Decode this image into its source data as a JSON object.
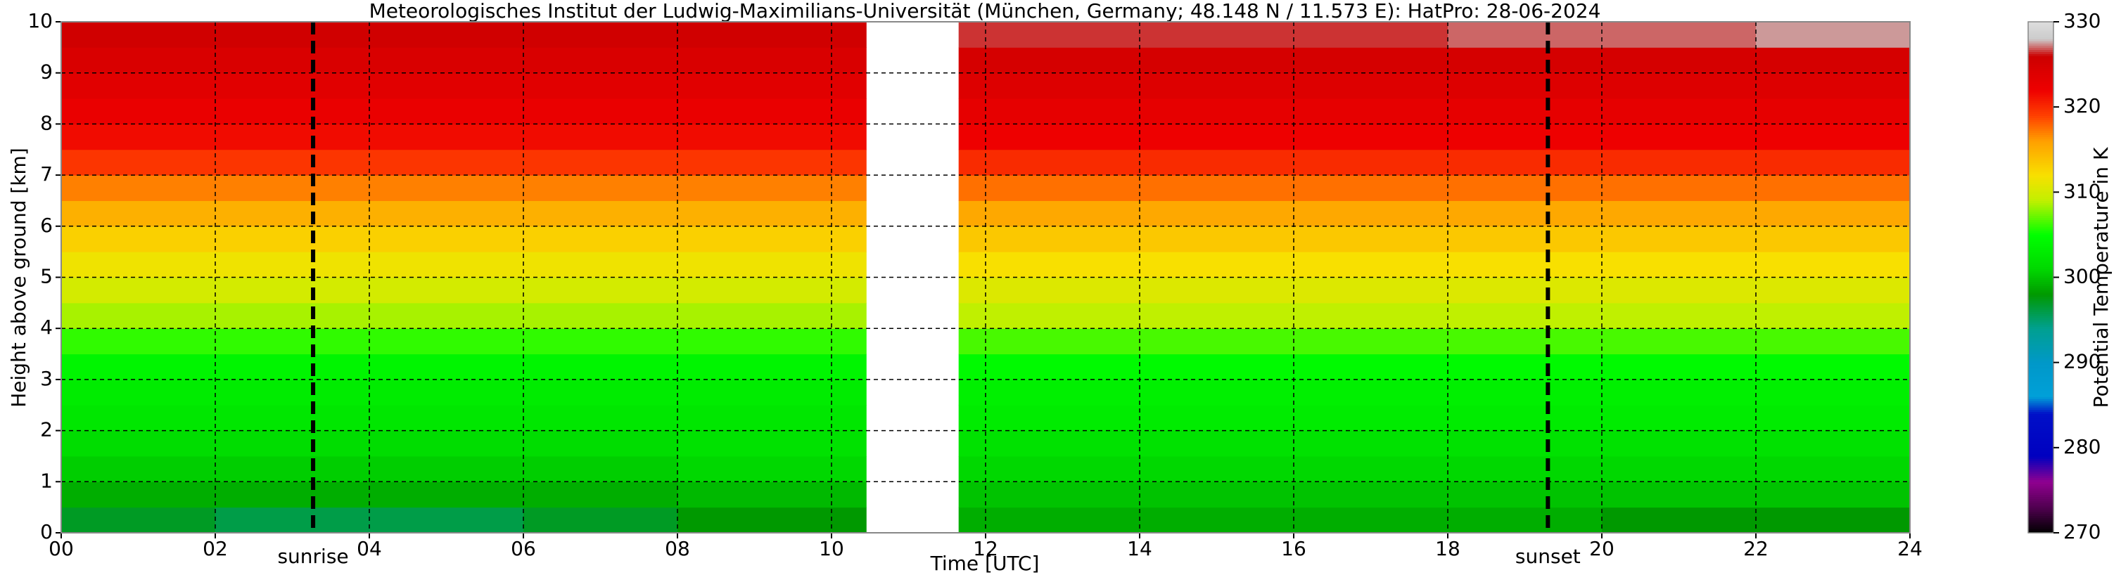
{
  "chart_data": {
    "type": "heatmap",
    "title": "Meteorologisches Institut der Ludwig-Maximilians-Universität (München, Germany; 48.148 N / 11.573 E):    HatPro: 28-06-2024",
    "x_label": "Time [UTC]",
    "y_label": "Height above ground [km]",
    "colorbar_label": "Potential Temperature in K",
    "x_bins": [
      0,
      2,
      4,
      6,
      8,
      10.45,
      11.65,
      14,
      16,
      18,
      20,
      22,
      24
    ],
    "y_bins": [
      0,
      0.5,
      1,
      1.5,
      2,
      2.5,
      3,
      3.5,
      4,
      4.5,
      5,
      5.5,
      6,
      6.5,
      7,
      7.5,
      8,
      8.5,
      9,
      9.5,
      10
    ],
    "values": [
      [
        297,
        296,
        296,
        297,
        298,
        null,
        299,
        299,
        299,
        299,
        298,
        298
      ],
      [
        299,
        299,
        299,
        299,
        299.5,
        null,
        300,
        300,
        300,
        300,
        300,
        300
      ],
      [
        300.5,
        300.5,
        300.5,
        300.5,
        301,
        null,
        301,
        301,
        301,
        301,
        301,
        301
      ],
      [
        301.5,
        301.5,
        301.5,
        301.5,
        302,
        null,
        302,
        302,
        302,
        302,
        302,
        302
      ],
      [
        302.5,
        302.5,
        302.5,
        302.5,
        302.5,
        null,
        303,
        303,
        303,
        303,
        303,
        303
      ],
      [
        303,
        303,
        303,
        303,
        303,
        null,
        303.5,
        303.5,
        303.5,
        303.5,
        303.5,
        303.5
      ],
      [
        304,
        304,
        304,
        304,
        304,
        null,
        304.5,
        304.5,
        304.5,
        304.5,
        304.5,
        304.5
      ],
      [
        306,
        306,
        306,
        306,
        306,
        null,
        306.5,
        306.5,
        306.5,
        306.5,
        306.5,
        306.5
      ],
      [
        308.5,
        308.5,
        308.5,
        308.5,
        308.5,
        null,
        309,
        309,
        309,
        309,
        309,
        309
      ],
      [
        310,
        310,
        310,
        310,
        310,
        null,
        310.5,
        310.5,
        310.5,
        310.5,
        310.5,
        310.5
      ],
      [
        311.5,
        311.5,
        311.5,
        311.5,
        311.5,
        null,
        312,
        312,
        312,
        312,
        312,
        312
      ],
      [
        313,
        313,
        313,
        313,
        313,
        null,
        313.5,
        313.5,
        313.5,
        313.5,
        313.5,
        313.5
      ],
      [
        315,
        315,
        315,
        315,
        315,
        null,
        315.5,
        315.5,
        315.5,
        315.5,
        315.5,
        315.5
      ],
      [
        317,
        317,
        317,
        317,
        317,
        null,
        317.5,
        317.5,
        317.5,
        317.5,
        317.5,
        317.5
      ],
      [
        319.5,
        319.5,
        319.5,
        319.5,
        319.5,
        null,
        320,
        320,
        320,
        320,
        320,
        320
      ],
      [
        321.5,
        321.5,
        321.5,
        321.5,
        321.5,
        null,
        322,
        322,
        322,
        322,
        322,
        322
      ],
      [
        322.5,
        322.5,
        322.5,
        322.5,
        322.5,
        null,
        323,
        323,
        323,
        323,
        323,
        323
      ],
      [
        323.5,
        323.5,
        323.5,
        323.5,
        323.5,
        null,
        324,
        324,
        324,
        324,
        324,
        324
      ],
      [
        324.5,
        324.5,
        324.5,
        324.5,
        324.5,
        null,
        325,
        325,
        325,
        325,
        325,
        325
      ],
      [
        325.5,
        325.5,
        325.5,
        325.5,
        325.5,
        null,
        326.5,
        326.5,
        326.5,
        327,
        327,
        327.5
      ]
    ],
    "colormap": [
      {
        "value": 270,
        "color": "#000000"
      },
      {
        "value": 273,
        "color": "#500050"
      },
      {
        "value": 276,
        "color": "#900090"
      },
      {
        "value": 279,
        "color": "#0000c0"
      },
      {
        "value": 284,
        "color": "#0010c8"
      },
      {
        "value": 286,
        "color": "#00a0d8"
      },
      {
        "value": 290,
        "color": "#0098c8"
      },
      {
        "value": 294,
        "color": "#00a090"
      },
      {
        "value": 298,
        "color": "#009900"
      },
      {
        "value": 301,
        "color": "#00d800"
      },
      {
        "value": 305,
        "color": "#00ff00"
      },
      {
        "value": 309,
        "color": "#c0f000"
      },
      {
        "value": 312,
        "color": "#f8e000"
      },
      {
        "value": 316,
        "color": "#ffa000"
      },
      {
        "value": 319,
        "color": "#ff4000"
      },
      {
        "value": 322,
        "color": "#ee0000"
      },
      {
        "value": 326,
        "color": "#cc0000"
      },
      {
        "value": 328,
        "color": "#cccccc"
      },
      {
        "value": 330,
        "color": "#dddddd"
      }
    ],
    "xlim": [
      0,
      24
    ],
    "xticks": [
      {
        "value": 0,
        "label": "00"
      },
      {
        "value": 2,
        "label": "02"
      },
      {
        "value": 4,
        "label": "04"
      },
      {
        "value": 6,
        "label": "06"
      },
      {
        "value": 8,
        "label": "08"
      },
      10,
      12,
      14,
      16,
      18,
      20,
      22,
      24
    ],
    "ylim": [
      0,
      10
    ],
    "yticks": [
      0,
      1,
      2,
      3,
      4,
      5,
      6,
      7,
      8,
      9,
      10
    ],
    "clim": [
      270,
      330
    ],
    "cticks": [
      270,
      280,
      290,
      300,
      310,
      320,
      330
    ],
    "grid": true,
    "annotations": [
      {
        "text": "sunrise",
        "x": 3.27
      },
      {
        "text": "sunset",
        "x": 19.3
      }
    ]
  }
}
